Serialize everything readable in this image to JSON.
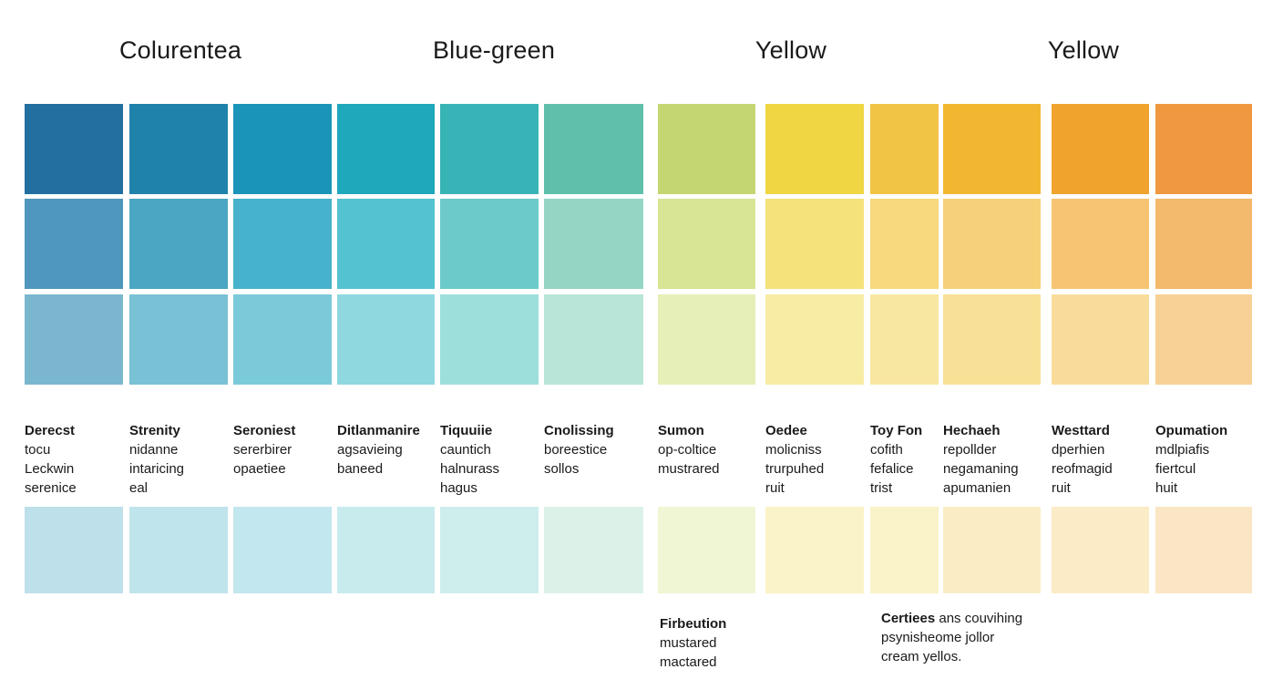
{
  "group_titles": [
    "Colurentea",
    "Blue-green",
    "Yellow",
    "Yellow"
  ],
  "columns": [
    {
      "name": "Derecst",
      "lines": [
        "tocu",
        "Leckwin",
        "serenice"
      ],
      "colors": [
        "#236f9f",
        "#4f97bc",
        "#7ab7cf",
        "#bde0ea"
      ]
    },
    {
      "name": "Strenity",
      "lines": [
        "nidanne",
        "intaricing",
        "eal"
      ],
      "colors": [
        "#1f82aa",
        "#4ba6c3",
        "#79c1d5",
        "#c0e4ec"
      ]
    },
    {
      "name": "Seroniest",
      "lines": [
        "sererbirer",
        "opaetiee"
      ],
      "colors": [
        "#1a94b8",
        "#46b2cb",
        "#7bcad9",
        "#c2e7ee"
      ]
    },
    {
      "name": "Ditlanmanire",
      "lines": [
        "agsavieing",
        "baneed"
      ],
      "colors": [
        "#1fa8bb",
        "#55c2d1",
        "#8fd8e0",
        "#c8ebee"
      ]
    },
    {
      "name": "Tiquuiie",
      "lines": [
        "cauntich",
        "halnurass",
        "hagus"
      ],
      "colors": [
        "#38b4b6",
        "#6ccaca",
        "#9ddfdb",
        "#cdeeec"
      ]
    },
    {
      "name": "Cnolissing",
      "lines": [
        "boreestice",
        "sollos"
      ],
      "colors": [
        "#5fbfaa",
        "#94d6c4",
        "#b8e5d8",
        "#dcf2e8"
      ]
    },
    {
      "name": "Sumon",
      "lines": [
        "op-coltice",
        "mustrared"
      ],
      "colors": [
        "#c3d672",
        "#d7e594",
        "#e6efb7",
        "#f0f6d4"
      ]
    },
    {
      "name": "Oedee",
      "lines": [
        "molicniss",
        "trurpuhed",
        "ruit"
      ],
      "colors": [
        "#efd642",
        "#f5e27a",
        "#f8eca4",
        "#fbf3c8"
      ]
    },
    {
      "name": "Toy Fon",
      "lines": [
        "cofith",
        "fefalice",
        "trist"
      ],
      "colors": [
        "#f2c446",
        "#f7d97e",
        "#f8e7a1",
        "#faf2c9"
      ]
    },
    {
      "name": "Hechaeh",
      "lines": [
        "repollder",
        "negamaning",
        "apumanien"
      ],
      "colors": [
        "#f2b731",
        "#f7d07a",
        "#f8e097",
        "#faedc6"
      ]
    },
    {
      "name": "Westtard",
      "lines": [
        "dperhien",
        "reofmagid",
        "ruit"
      ],
      "colors": [
        "#f0a42d",
        "#f6c472",
        "#f9dc9b",
        "#fbebc6"
      ]
    },
    {
      "name": "Opumation",
      "lines": [
        "mdlpiafis",
        "fiertcul",
        "huit"
      ],
      "colors": [
        "#ef9840",
        "#f3b96c",
        "#f7d196",
        "#fae6c4"
      ]
    }
  ],
  "notes": [
    {
      "name": "Firbeution",
      "lines": [
        "mustared",
        "mactared"
      ]
    },
    {
      "name": "Certiees",
      "name_suffix": " ans couvihing",
      "lines": [
        "psynisheome jollor",
        "cream yellos."
      ]
    }
  ]
}
